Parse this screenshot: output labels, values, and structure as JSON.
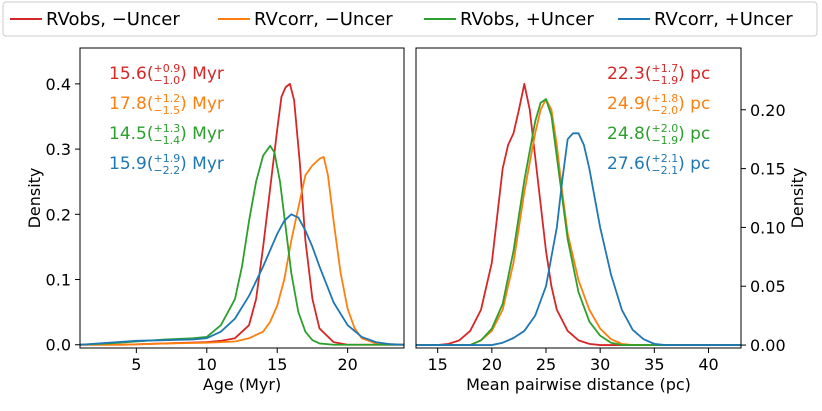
{
  "chart_data": [
    {
      "type": "line",
      "xlabel": "Age (Myr)",
      "ylabel": "Density",
      "xlim": [
        1,
        24
      ],
      "ylim": [
        -0.005,
        0.455
      ],
      "xticks": [
        5,
        10,
        15,
        20
      ],
      "yticks": [
        0.0,
        0.1,
        0.2,
        0.3,
        0.4
      ],
      "ytick_labels": [
        "0.0",
        "0.1",
        "0.2",
        "0.3",
        "0.4"
      ],
      "y_axis_side": "left",
      "series": [
        {
          "name": "RVobs, −Uncer",
          "color": "#d62728",
          "x": [
            1,
            4,
            7,
            10,
            11,
            12,
            13,
            13.5,
            14,
            14.5,
            15,
            15.3,
            15.6,
            15.9,
            16.2,
            16.6,
            17,
            17.5,
            18,
            19,
            20,
            24
          ],
          "y": [
            0,
            0,
            0.002,
            0.004,
            0.006,
            0.01,
            0.03,
            0.07,
            0.15,
            0.24,
            0.33,
            0.38,
            0.395,
            0.4,
            0.375,
            0.28,
            0.16,
            0.07,
            0.025,
            0.004,
            0,
            0
          ]
        },
        {
          "name": "RVcorr, −Uncer",
          "color": "#ff7f0e",
          "x": [
            1,
            4,
            7,
            10,
            12,
            13,
            14,
            14.5,
            15,
            15.5,
            16,
            16.5,
            17,
            17.5,
            18,
            18.3,
            18.6,
            19,
            19.5,
            20,
            20.5,
            21,
            22,
            24
          ],
          "y": [
            0,
            0,
            0.002,
            0.003,
            0.005,
            0.01,
            0.02,
            0.035,
            0.06,
            0.1,
            0.16,
            0.21,
            0.26,
            0.275,
            0.285,
            0.288,
            0.26,
            0.19,
            0.11,
            0.055,
            0.025,
            0.01,
            0.002,
            0
          ]
        },
        {
          "name": "RVobs, +Uncer",
          "color": "#2ca02c",
          "x": [
            1,
            3,
            5,
            7,
            9,
            10,
            11,
            12,
            12.5,
            13,
            13.5,
            14,
            14.5,
            14.8,
            15.2,
            15.6,
            16,
            16.5,
            17,
            17.5,
            18,
            19,
            20,
            24
          ],
          "y": [
            0,
            0.002,
            0.005,
            0.008,
            0.01,
            0.012,
            0.03,
            0.07,
            0.12,
            0.19,
            0.25,
            0.29,
            0.305,
            0.295,
            0.25,
            0.18,
            0.11,
            0.05,
            0.02,
            0.007,
            0.002,
            0,
            0,
            0
          ]
        },
        {
          "name": "RVcorr, +Uncer",
          "color": "#1f77b4",
          "x": [
            1,
            3,
            5,
            7,
            9,
            10,
            11,
            12,
            13,
            14,
            15,
            15.5,
            16,
            16.5,
            17,
            17.5,
            18,
            19,
            20,
            21,
            22,
            23,
            24
          ],
          "y": [
            0,
            0.003,
            0.006,
            0.007,
            0.008,
            0.01,
            0.02,
            0.04,
            0.075,
            0.12,
            0.17,
            0.19,
            0.2,
            0.195,
            0.175,
            0.15,
            0.12,
            0.065,
            0.03,
            0.012,
            0.004,
            0.001,
            0
          ]
        }
      ],
      "annotations": [
        {
          "base": "15.6",
          "sup": "+0.9",
          "sub": "−1.0",
          "unit": "Myr",
          "color": "#d62728"
        },
        {
          "base": "17.8",
          "sup": "+1.2",
          "sub": "−1.5",
          "unit": "Myr",
          "color": "#ff7f0e"
        },
        {
          "base": "14.5",
          "sup": "+1.3",
          "sub": "−1.4",
          "unit": "Myr",
          "color": "#2ca02c"
        },
        {
          "base": "15.9",
          "sup": "+1.9",
          "sub": "−2.2",
          "unit": "Myr",
          "color": "#1f77b4"
        }
      ]
    },
    {
      "type": "line",
      "xlabel": "Mean pairwise distance (pc)",
      "ylabel": "Density",
      "xlim": [
        13,
        43
      ],
      "ylim": [
        -0.0025,
        0.2525
      ],
      "xticks": [
        15,
        20,
        25,
        30,
        35,
        40
      ],
      "yticks": [
        0.0,
        0.05,
        0.1,
        0.15,
        0.2
      ],
      "ytick_labels": [
        "0.00",
        "0.05",
        "0.10",
        "0.15",
        "0.20"
      ],
      "y_axis_side": "right",
      "series": [
        {
          "name": "RVobs, −Uncer",
          "color": "#d62728",
          "x": [
            13,
            15,
            16,
            17,
            18,
            19,
            20,
            20.5,
            21,
            21.5,
            22,
            22.5,
            23,
            23.5,
            24,
            24.5,
            25,
            25.5,
            26,
            27,
            28,
            29,
            30,
            43
          ],
          "y": [
            0,
            0,
            0.001,
            0.004,
            0.012,
            0.03,
            0.07,
            0.11,
            0.15,
            0.17,
            0.18,
            0.2,
            0.222,
            0.2,
            0.16,
            0.12,
            0.08,
            0.05,
            0.03,
            0.012,
            0.004,
            0.001,
            0,
            0
          ]
        },
        {
          "name": "RVcorr, −Uncer",
          "color": "#ff7f0e",
          "x": [
            13,
            18,
            19,
            20,
            21,
            22,
            23,
            24,
            24.5,
            25,
            25.5,
            26,
            26.5,
            27,
            28,
            29,
            30,
            31,
            32,
            33,
            43
          ],
          "y": [
            0,
            0,
            0.004,
            0.012,
            0.03,
            0.07,
            0.13,
            0.18,
            0.2,
            0.209,
            0.2,
            0.17,
            0.13,
            0.095,
            0.055,
            0.03,
            0.014,
            0.005,
            0.001,
            0,
            0
          ]
        },
        {
          "name": "RVobs, +Uncer",
          "color": "#2ca02c",
          "x": [
            13,
            18,
            19,
            20,
            21,
            22,
            23,
            24,
            24.5,
            25,
            25.5,
            26,
            27,
            28,
            29,
            30,
            31,
            32,
            33,
            43
          ],
          "y": [
            0,
            0,
            0.004,
            0.014,
            0.035,
            0.08,
            0.14,
            0.19,
            0.206,
            0.209,
            0.195,
            0.16,
            0.09,
            0.045,
            0.02,
            0.008,
            0.002,
            0,
            0,
            0
          ]
        },
        {
          "name": "RVcorr, +Uncer",
          "color": "#1f77b4",
          "x": [
            13,
            20,
            21,
            22,
            23,
            24,
            25,
            26,
            26.5,
            27,
            27.5,
            28,
            28.5,
            29,
            30,
            31,
            32,
            33,
            34,
            35,
            36,
            43
          ],
          "y": [
            0,
            0,
            0.002,
            0.006,
            0.012,
            0.025,
            0.05,
            0.1,
            0.14,
            0.175,
            0.18,
            0.18,
            0.17,
            0.15,
            0.1,
            0.06,
            0.03,
            0.013,
            0.005,
            0.001,
            0,
            0
          ]
        }
      ],
      "annotations": [
        {
          "base": "22.3",
          "sup": "+1.7",
          "sub": "−1.9",
          "unit": "pc",
          "color": "#d62728"
        },
        {
          "base": "24.9",
          "sup": "+1.8",
          "sub": "−2.0",
          "unit": "pc",
          "color": "#ff7f0e"
        },
        {
          "base": "24.8",
          "sup": "+2.0",
          "sub": "−1.9",
          "unit": "pc",
          "color": "#2ca02c"
        },
        {
          "base": "27.6",
          "sup": "+2.1",
          "sub": "−2.1",
          "unit": "pc",
          "color": "#1f77b4"
        }
      ]
    }
  ],
  "legend": {
    "placement": "top",
    "entries": [
      {
        "label": "RVobs, −Uncer",
        "color": "#d62728"
      },
      {
        "label": "RVcorr, −Uncer",
        "color": "#ff7f0e"
      },
      {
        "label": "RVobs, +Uncer",
        "color": "#2ca02c"
      },
      {
        "label": "RVcorr, +Uncer",
        "color": "#1f77b4"
      }
    ]
  }
}
